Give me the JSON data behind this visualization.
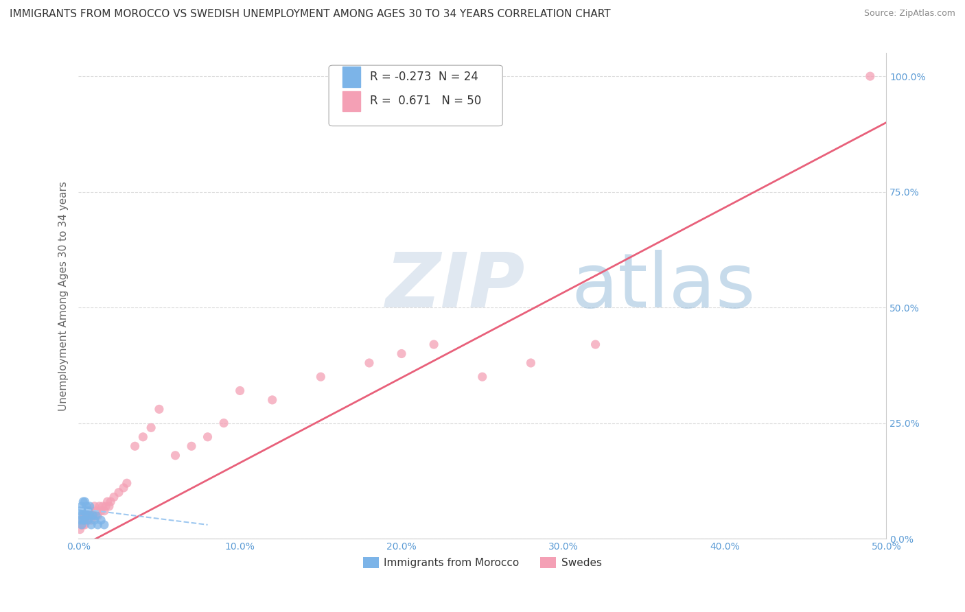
{
  "title": "IMMIGRANTS FROM MOROCCO VS SWEDISH UNEMPLOYMENT AMONG AGES 30 TO 34 YEARS CORRELATION CHART",
  "source": "Source: ZipAtlas.com",
  "ylabel": "Unemployment Among Ages 30 to 34 years",
  "xlim": [
    0,
    0.5
  ],
  "ylim": [
    0,
    1.05
  ],
  "yticks": [
    0.0,
    0.25,
    0.5,
    0.75,
    1.0
  ],
  "ytick_labels": [
    "0.0%",
    "25.0%",
    "50.0%",
    "75.0%",
    "100.0%"
  ],
  "xticks": [
    0.0,
    0.1,
    0.2,
    0.3,
    0.4,
    0.5
  ],
  "xtick_labels": [
    "0.0%",
    "10.0%",
    "20.0%",
    "30.0%",
    "40.0%",
    "50.0%"
  ],
  "legend_R1": "-0.273",
  "legend_N1": "24",
  "legend_R2": "0.671",
  "legend_N2": "50",
  "blue_color": "#7cb4e8",
  "pink_color": "#f4a0b5",
  "pink_line_color": "#e8607a",
  "blue_line_color": "#9ec8f0",
  "grid_color": "#dddddd",
  "background_color": "#ffffff",
  "title_fontsize": 11,
  "axis_label_fontsize": 11,
  "tick_fontsize": 10,
  "tick_color": "#5b9bd5",
  "marker_size": 60,
  "blue_x": [
    0.001,
    0.001,
    0.002,
    0.002,
    0.002,
    0.003,
    0.003,
    0.003,
    0.004,
    0.004,
    0.004,
    0.005,
    0.005,
    0.006,
    0.006,
    0.007,
    0.007,
    0.008,
    0.009,
    0.01,
    0.011,
    0.012,
    0.014,
    0.016
  ],
  "blue_y": [
    0.04,
    0.06,
    0.03,
    0.05,
    0.07,
    0.04,
    0.06,
    0.08,
    0.04,
    0.06,
    0.08,
    0.05,
    0.07,
    0.04,
    0.06,
    0.05,
    0.07,
    0.03,
    0.05,
    0.04,
    0.05,
    0.03,
    0.04,
    0.03
  ],
  "pink_x": [
    0.001,
    0.002,
    0.002,
    0.003,
    0.003,
    0.004,
    0.004,
    0.005,
    0.005,
    0.006,
    0.006,
    0.007,
    0.007,
    0.008,
    0.008,
    0.009,
    0.01,
    0.01,
    0.011,
    0.012,
    0.013,
    0.014,
    0.015,
    0.016,
    0.017,
    0.018,
    0.019,
    0.02,
    0.022,
    0.025,
    0.028,
    0.03,
    0.035,
    0.04,
    0.045,
    0.05,
    0.06,
    0.07,
    0.08,
    0.09,
    0.1,
    0.12,
    0.15,
    0.18,
    0.2,
    0.22,
    0.25,
    0.28,
    0.32,
    0.49
  ],
  "pink_y": [
    0.02,
    0.03,
    0.04,
    0.03,
    0.05,
    0.03,
    0.05,
    0.04,
    0.06,
    0.04,
    0.05,
    0.05,
    0.06,
    0.04,
    0.06,
    0.05,
    0.05,
    0.07,
    0.06,
    0.05,
    0.07,
    0.06,
    0.07,
    0.06,
    0.07,
    0.08,
    0.07,
    0.08,
    0.09,
    0.1,
    0.11,
    0.12,
    0.2,
    0.22,
    0.24,
    0.28,
    0.18,
    0.2,
    0.22,
    0.25,
    0.32,
    0.3,
    0.35,
    0.38,
    0.4,
    0.42,
    0.35,
    0.38,
    0.42,
    1.0
  ],
  "pink_line_x0": 0.0,
  "pink_line_y0": -0.02,
  "pink_line_x1": 0.5,
  "pink_line_y1": 0.9,
  "blue_line_x0": 0.0,
  "blue_line_y0": 0.065,
  "blue_line_x1": 0.08,
  "blue_line_y1": 0.03
}
